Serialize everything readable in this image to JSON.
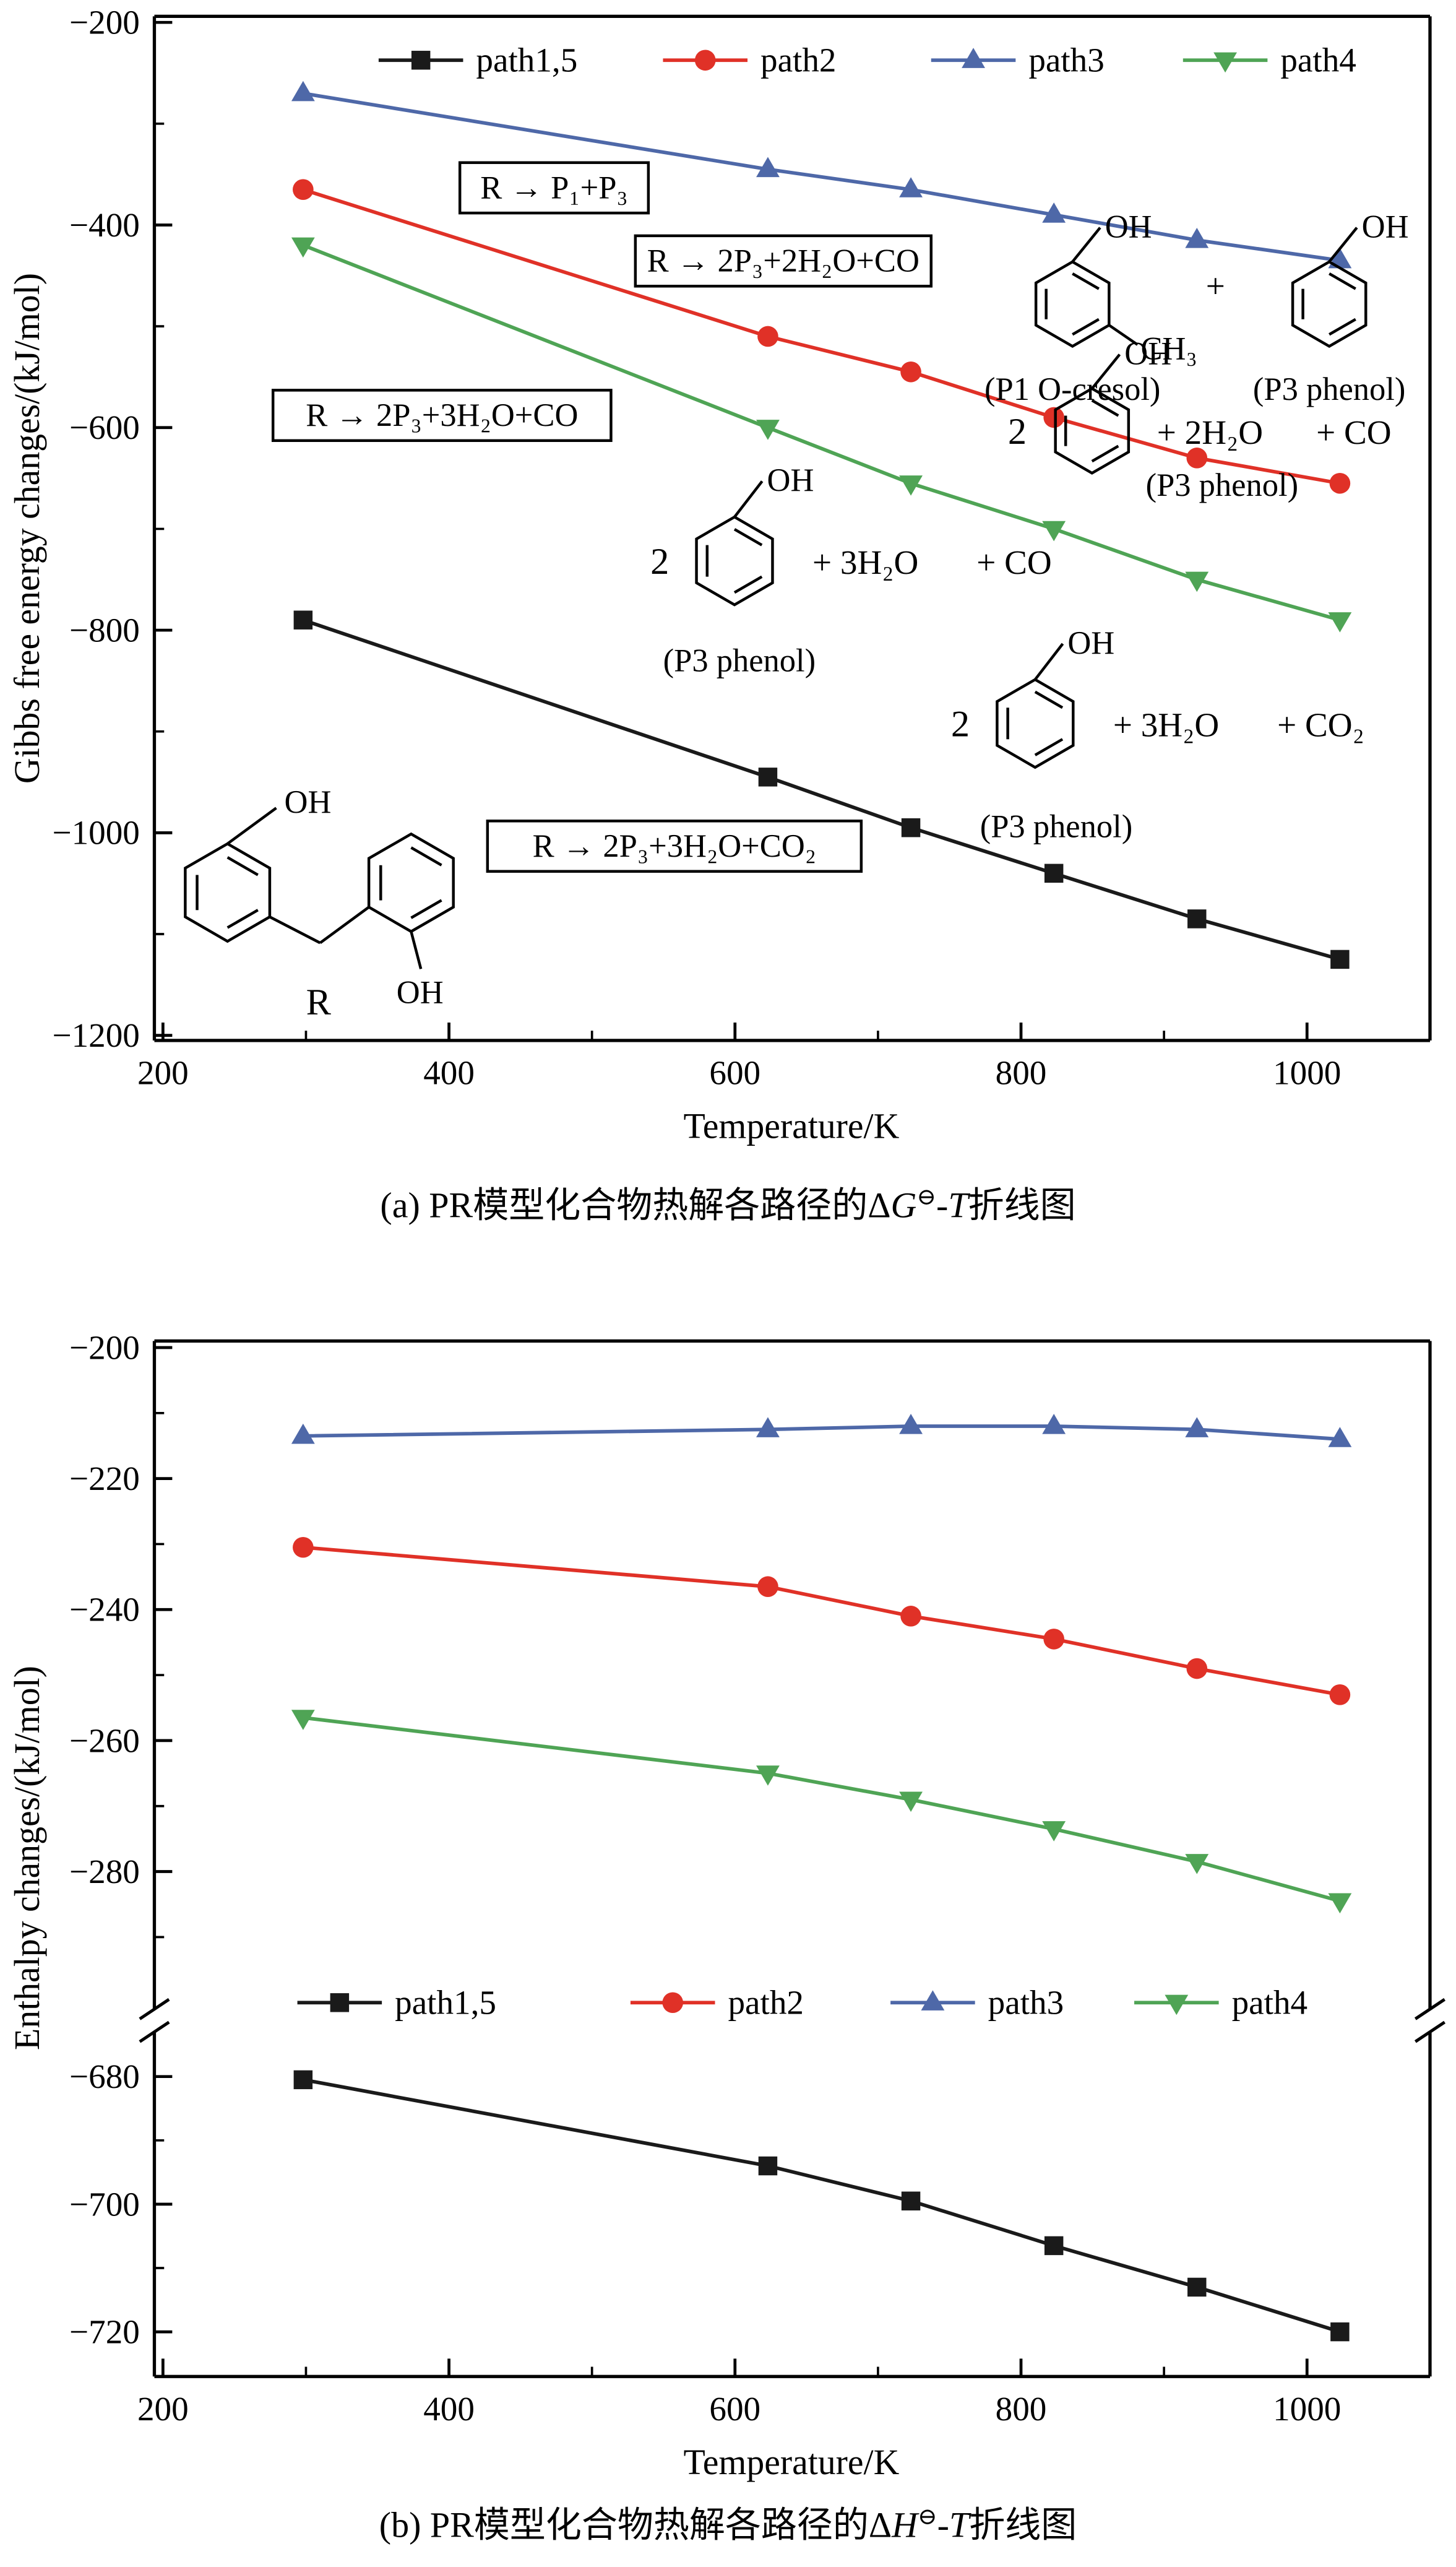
{
  "figure_a": {
    "caption": {
      "pre": "(a) PR模型化合物热解各路径的Δ",
      "symbol": "G",
      "sup": "⊖",
      "dash": "-",
      "t": "T",
      "post": "折线图"
    }
  },
  "figure_b": {
    "caption": {
      "pre": "(b) PR模型化合物热解各路径的Δ",
      "symbol": "H",
      "sup": "⊖",
      "dash": "-",
      "t": "T",
      "post": "折线图"
    }
  },
  "annotations": {
    "reactions": [
      {
        "text": "R → P₁+P₃"
      },
      {
        "text": "R → 2P₃+2H₂O+CO"
      },
      {
        "text": "R → 2P₃+3H₂O+CO"
      },
      {
        "text": "R → 2P₃+3H₂O+CO₂"
      }
    ],
    "labels": {
      "oh": "OH",
      "ch3": "CH₃",
      "two": "2",
      "plus": "+",
      "plus_2h2o": "+ 2H₂O",
      "plus_3h2o": "+ 3H₂O",
      "plus_co": "+ CO",
      "plus_co2": "+ CO₂",
      "p1_caption": "(P1 O-cresol)",
      "p3_caption": "(P3 phenol)",
      "r": "R"
    }
  },
  "chart_data": [
    {
      "type": "line",
      "panel": "a",
      "xlabel": "Temperature/K",
      "ylabel": "Gibbs free energy changes/(kJ/mol)",
      "x": [
        298,
        623,
        723,
        823,
        923,
        1023
      ],
      "xlim": [
        194,
        1086
      ],
      "xticks": [
        200,
        400,
        600,
        800,
        1000
      ],
      "ylim": [
        -1205,
        -194
      ],
      "yticks": [
        -1200,
        -1000,
        -800,
        -600,
        -400,
        -200
      ],
      "grid": false,
      "legend_position": "top-inside",
      "series": [
        {
          "name": "path1,5",
          "marker": "square",
          "color": "#1a1a1a",
          "values": [
            -790,
            -945,
            -995,
            -1040,
            -1085,
            -1125
          ]
        },
        {
          "name": "path2",
          "marker": "circle",
          "color": "#e03127",
          "values": [
            -365,
            -510,
            -545,
            -590,
            -630,
            -655
          ]
        },
        {
          "name": "path3",
          "marker": "triangle-up",
          "color": "#4e68a8",
          "values": [
            -270,
            -345,
            -365,
            -390,
            -415,
            -435
          ]
        },
        {
          "name": "path4",
          "marker": "triangle-down",
          "color": "#4fa455",
          "values": [
            -420,
            -600,
            -655,
            -700,
            -750,
            -790
          ]
        }
      ]
    },
    {
      "type": "line",
      "panel": "b",
      "xlabel": "Temperature/K",
      "ylabel": "Enthalpy changes/(kJ/mol)",
      "x": [
        298,
        623,
        723,
        823,
        923,
        1023
      ],
      "xlim": [
        194,
        1086
      ],
      "xticks": [
        200,
        400,
        600,
        800,
        1000
      ],
      "axis_break": true,
      "grid": false,
      "legend_position": "middle-inside",
      "segments": [
        {
          "ylim": [
            -301,
            -199
          ],
          "yticks": [
            -280,
            -260,
            -240,
            -220,
            -200
          ]
        },
        {
          "ylim": [
            -727,
            -673
          ],
          "yticks": [
            -720,
            -700,
            -680
          ]
        }
      ],
      "series": [
        {
          "name": "path1,5",
          "marker": "square",
          "color": "#1a1a1a",
          "values": [
            -680.5,
            -694,
            -699.5,
            -706.5,
            -713,
            -720
          ]
        },
        {
          "name": "path2",
          "marker": "circle",
          "color": "#e03127",
          "values": [
            -230.5,
            -236.5,
            -241,
            -244.5,
            -249,
            -253
          ]
        },
        {
          "name": "path3",
          "marker": "triangle-up",
          "color": "#4e68a8",
          "values": [
            -213.5,
            -212.5,
            -212,
            -212,
            -212.5,
            -214
          ]
        },
        {
          "name": "path4",
          "marker": "triangle-down",
          "color": "#4fa455",
          "values": [
            -256.5,
            -265,
            -269,
            -273.5,
            -278.5,
            -284.5
          ]
        }
      ]
    }
  ]
}
